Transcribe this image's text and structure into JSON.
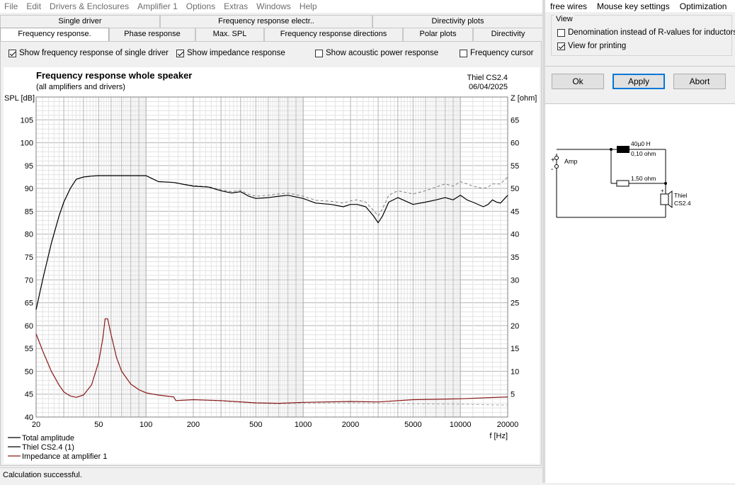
{
  "menubar": {
    "items": [
      "File",
      "Edit",
      "Drivers & Enclosures",
      "Amplifier 1",
      "Options",
      "Extras",
      "Windows",
      "Help"
    ]
  },
  "tabs": {
    "row1": [
      "Single driver",
      "Frequency response electr..",
      "Directivity plots"
    ],
    "row2": [
      "Frequency response.",
      "Phase response",
      "Max. SPL",
      "Frequency response directions",
      "Polar plots",
      "Directivity"
    ]
  },
  "options": {
    "single_driver": {
      "label": "Show frequency response of single driver",
      "checked": true
    },
    "impedance": {
      "label": "Show impedance response",
      "checked": true
    },
    "acoustic_power": {
      "label": "Show acoustic power response",
      "checked": false
    },
    "cursor": {
      "label": "Frequency cursor",
      "checked": false
    }
  },
  "status": "Calculation successful.",
  "right_menu": [
    "free wires",
    "Mouse key settings",
    "Optimization"
  ],
  "view_group": {
    "title": "View",
    "denomination": {
      "label": "Denomination instead of R-values for inductors",
      "checked": false
    },
    "printing": {
      "label": "View for printing",
      "checked": true
    }
  },
  "buttons": {
    "ok": "Ok",
    "apply": "Apply",
    "abort": "Abort"
  },
  "circuit": {
    "amp_label": "Amp",
    "plus": "+",
    "minus": "-",
    "inductor_value": "40µ0 H",
    "inductor_resistance": "0,10 ohm",
    "resistor_value": "1,50 ohm",
    "driver_name": "Thiel",
    "driver_model": "CS2.4"
  },
  "chart_data": {
    "type": "line",
    "title": "Frequency response whole speaker",
    "subtitle": "(all amplifiers and drivers)",
    "model": "Thiel CS2.4",
    "date": "06/04/2025",
    "ylabel_left": "SPL [dB]",
    "ylabel_right": "Z [ohm]",
    "xlabel": "f [Hz]",
    "x_scale": "log",
    "xlim": [
      20,
      20000
    ],
    "ylim_left": [
      40,
      110
    ],
    "ylim_right": [
      0,
      70
    ],
    "x_ticks": [
      20,
      50,
      100,
      200,
      500,
      1000,
      2000,
      5000,
      10000,
      20000
    ],
    "y_ticks_left": [
      40,
      45,
      50,
      55,
      60,
      65,
      70,
      75,
      80,
      85,
      90,
      95,
      100,
      105
    ],
    "y_ticks_right": [
      5,
      10,
      15,
      20,
      25,
      30,
      35,
      40,
      45,
      50,
      55,
      60,
      65
    ],
    "grid": true,
    "legend_position": "bottom-left",
    "series": [
      {
        "name": "Total amplitude",
        "color": "#000000",
        "dash": "solid",
        "axis": "left",
        "x": [
          20,
          22,
          25,
          28,
          30,
          33,
          36,
          40,
          45,
          50,
          60,
          70,
          80,
          100,
          120,
          150,
          200,
          250,
          300,
          350,
          400,
          450,
          500,
          600,
          700,
          800,
          1000,
          1200,
          1500,
          1800,
          2000,
          2200,
          2500,
          2800,
          3000,
          3200,
          3500,
          4000,
          5000,
          6000,
          7000,
          8000,
          9000,
          10000,
          11000,
          12000,
          14000,
          15000,
          16000,
          17000,
          18000,
          20000
        ],
        "y": [
          63.5,
          70,
          78,
          84,
          87,
          90,
          92,
          92.5,
          92.7,
          92.8,
          92.8,
          92.8,
          92.8,
          92.8,
          91.5,
          91.3,
          90.5,
          90.3,
          89.5,
          89,
          89.3,
          88.3,
          87.8,
          88,
          88.3,
          88.5,
          87.8,
          86.8,
          86.5,
          86,
          86.5,
          86.5,
          86,
          84,
          82.5,
          84,
          87,
          88,
          86.5,
          87,
          87.5,
          88,
          87.5,
          88.5,
          87.5,
          87,
          86,
          86.5,
          87.5,
          87,
          86.8,
          88.5
        ]
      },
      {
        "name": "Thiel CS2.4 (1)",
        "color": "#808080",
        "dash": "dashed",
        "axis": "left",
        "x": [
          20,
          22,
          25,
          28,
          30,
          33,
          36,
          40,
          45,
          50,
          60,
          70,
          80,
          100,
          120,
          150,
          200,
          250,
          300,
          350,
          400,
          450,
          500,
          600,
          700,
          800,
          1000,
          1200,
          1500,
          1800,
          2000,
          2200,
          2500,
          2800,
          3000,
          3200,
          3500,
          4000,
          5000,
          6000,
          7000,
          8000,
          9000,
          10000,
          11000,
          12000,
          14000,
          15000,
          16000,
          17000,
          18000,
          20000
        ],
        "y": [
          63.5,
          70,
          78,
          84,
          87,
          90,
          92,
          92.5,
          92.7,
          92.8,
          92.8,
          92.8,
          92.8,
          92.8,
          91.5,
          91.3,
          90.6,
          90.4,
          89.7,
          89.3,
          89.6,
          88.7,
          88.3,
          88.5,
          88.8,
          89,
          88.3,
          87.4,
          87.2,
          86.8,
          87.3,
          87.5,
          87,
          85.2,
          84,
          85.6,
          88.5,
          89.5,
          88.8,
          89.5,
          90.3,
          91,
          90.5,
          91.5,
          91,
          90.5,
          90,
          90.3,
          91,
          91,
          91,
          92.5
        ]
      },
      {
        "name": "Impedance at amplifier 1",
        "color": "#8b1a1a",
        "dash": "solid",
        "axis": "right",
        "x": [
          20,
          22,
          25,
          28,
          30,
          33,
          36,
          40,
          45,
          50,
          53,
          55,
          57,
          60,
          65,
          70,
          80,
          90,
          100,
          120,
          150,
          155,
          200,
          300,
          500,
          700,
          1000,
          2000,
          3000,
          5000,
          10000,
          20000
        ],
        "y": [
          18.2,
          14.5,
          10,
          7,
          5.5,
          4.6,
          4.3,
          4.8,
          7,
          12,
          17,
          21.5,
          21.5,
          18,
          13,
          10,
          7.2,
          6,
          5.3,
          4.8,
          4.4,
          3.6,
          3.8,
          3.6,
          3.1,
          3,
          3.2,
          3.4,
          3.3,
          3.8,
          4,
          4.4
        ]
      },
      {
        "name": "",
        "color": "#aaaaaa",
        "dash": "dashed",
        "axis": "right",
        "x": [
          20,
          22,
          25,
          28,
          30,
          33,
          36,
          40,
          45,
          50,
          53,
          55,
          57,
          60,
          65,
          70,
          80,
          90,
          100,
          120,
          150,
          155,
          200,
          300,
          500,
          700,
          1000,
          2000,
          3000,
          5000,
          10000,
          20000
        ],
        "y": [
          18.2,
          14.5,
          10,
          7,
          5.5,
          4.6,
          4.3,
          4.8,
          7,
          12,
          17,
          21.5,
          21.5,
          18,
          13,
          10,
          7.2,
          6,
          5.3,
          4.8,
          4.4,
          3.6,
          3.8,
          3.5,
          3,
          2.9,
          3,
          3.1,
          3,
          2.9,
          2.8,
          2.6
        ]
      }
    ],
    "legend": [
      "Total amplitude",
      "Thiel CS2.4 (1)",
      "Impedance at amplifier 1"
    ]
  }
}
